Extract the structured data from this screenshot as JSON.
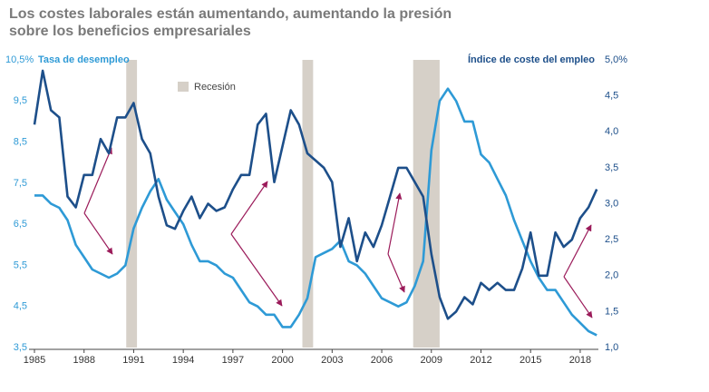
{
  "chart_data": {
    "type": "line",
    "title": [
      "Los costes laborales están aumentando, aumentando la presión",
      "sobre los beneficios empresariales"
    ],
    "y_label": "Tasa de desempleo",
    "y2_label": "Índice de coste del empleo",
    "legend": "Recesión",
    "recession_color": "#d6d0c8",
    "recessions": [
      [
        1990.55,
        1991.2
      ],
      [
        2001.2,
        2001.85
      ],
      [
        2007.9,
        2009.5
      ]
    ],
    "x": [
      1985,
      1985.5,
      1986,
      1986.5,
      1987,
      1987.5,
      1988,
      1988.5,
      1989,
      1989.5,
      1990,
      1990.5,
      1991,
      1991.5,
      1992,
      1992.5,
      1993,
      1993.5,
      1994,
      1994.5,
      1995,
      1995.5,
      1996,
      1996.5,
      1997,
      1997.5,
      1998,
      1998.5,
      1999,
      1999.5,
      2000,
      2000.5,
      2001,
      2001.5,
      2002,
      2002.5,
      2003,
      2003.5,
      2004,
      2004.5,
      2005,
      2005.5,
      2006,
      2006.5,
      2007,
      2007.5,
      2008,
      2008.5,
      2009,
      2009.5,
      2010,
      2010.5,
      2011,
      2011.5,
      2012,
      2012.5,
      2013,
      2013.5,
      2014,
      2014.5,
      2015,
      2015.5,
      2016,
      2016.5,
      2017,
      2017.5,
      2018,
      2018.5,
      2019
    ],
    "series": [
      {
        "name": "Tasa de desempleo",
        "color": "#2e9ad6",
        "axis": "y",
        "values": [
          7.2,
          7.2,
          7.0,
          6.9,
          6.6,
          6.0,
          5.7,
          5.4,
          5.3,
          5.2,
          5.3,
          5.5,
          6.4,
          6.9,
          7.3,
          7.6,
          7.1,
          6.8,
          6.5,
          6.0,
          5.6,
          5.6,
          5.5,
          5.3,
          5.2,
          4.9,
          4.6,
          4.5,
          4.3,
          4.3,
          4.0,
          4.0,
          4.3,
          4.7,
          5.7,
          5.8,
          5.9,
          6.1,
          5.6,
          5.5,
          5.3,
          5.0,
          4.7,
          4.6,
          4.5,
          4.6,
          5.0,
          5.6,
          8.3,
          9.5,
          9.8,
          9.5,
          9.0,
          9.0,
          8.2,
          8.0,
          7.6,
          7.2,
          6.6,
          6.1,
          5.6,
          5.2,
          4.9,
          4.9,
          4.6,
          4.3,
          4.1,
          3.9,
          3.8
        ]
      },
      {
        "name": "Índice de coste del empleo",
        "color": "#1d4f8a",
        "axis": "y2",
        "values": [
          4.1,
          4.85,
          4.3,
          4.2,
          3.1,
          2.95,
          3.4,
          3.4,
          3.9,
          3.7,
          4.2,
          4.2,
          4.4,
          3.9,
          3.7,
          3.1,
          2.7,
          2.65,
          2.9,
          3.1,
          2.8,
          3.0,
          2.9,
          2.95,
          3.2,
          3.4,
          3.4,
          4.1,
          4.25,
          3.3,
          3.8,
          4.3,
          4.1,
          3.7,
          3.6,
          3.5,
          3.3,
          2.4,
          2.8,
          2.2,
          2.6,
          2.4,
          2.7,
          3.1,
          3.5,
          3.5,
          3.3,
          3.1,
          2.3,
          1.7,
          1.4,
          1.5,
          1.7,
          1.6,
          1.9,
          1.8,
          1.9,
          1.8,
          1.8,
          2.1,
          2.6,
          2.0,
          2.0,
          2.6,
          2.4,
          2.5,
          2.8,
          2.95,
          3.2
        ]
      }
    ],
    "xlim": [
      1985,
      2019.1
    ],
    "xticks": [
      1985,
      1988,
      1991,
      1994,
      1997,
      2000,
      2003,
      2006,
      2009,
      2012,
      2015,
      2018
    ],
    "ylim": [
      3.5,
      10.5
    ],
    "yticks": [
      {
        "value": 3.5,
        "label": "3,5"
      },
      {
        "value": 4.5,
        "label": "4,5"
      },
      {
        "value": 5.5,
        "label": "5,5"
      },
      {
        "value": 6.5,
        "label": "6,5"
      },
      {
        "value": 7.5,
        "label": "7,5"
      },
      {
        "value": 8.5,
        "label": "8,5"
      },
      {
        "value": 9.5,
        "label": "9,5"
      },
      {
        "value": 10.5,
        "label": "10,5%"
      }
    ],
    "y2lim": [
      1.0,
      5.0
    ],
    "y2ticks": [
      {
        "value": 1.0,
        "label": "1,0"
      },
      {
        "value": 1.5,
        "label": "1,5"
      },
      {
        "value": 2.0,
        "label": "2,0"
      },
      {
        "value": 2.5,
        "label": "2,5"
      },
      {
        "value": 3.0,
        "label": "3,0"
      },
      {
        "value": 3.5,
        "label": "3,5"
      },
      {
        "value": 4.0,
        "label": "4,0"
      },
      {
        "value": 4.5,
        "label": "4,5"
      },
      {
        "value": 5.0,
        "label": "5,0%"
      }
    ]
  }
}
